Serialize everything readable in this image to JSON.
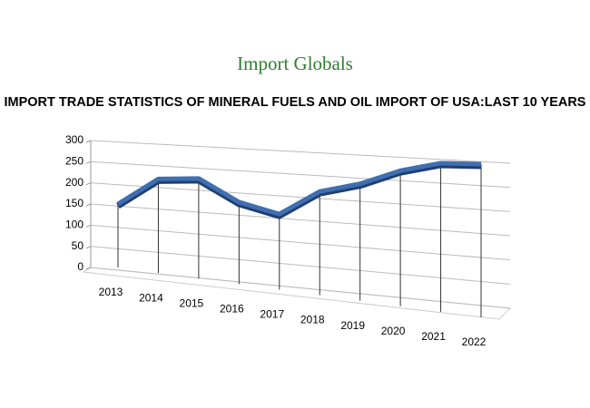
{
  "logo": "Import Globals",
  "chart_data": {
    "type": "line",
    "title": "IMPORT TRADE STATISTICS OF MINERAL FUELS AND OIL IMPORT OF USA:LAST 10 YEARS",
    "categories": [
      "2013",
      "2014",
      "2015",
      "2016",
      "2017",
      "2018",
      "2019",
      "2020",
      "2021",
      "2022"
    ],
    "values": [
      150,
      210,
      212,
      165,
      145,
      190,
      205,
      228,
      240,
      238
    ],
    "color": "#3f6fb0",
    "ylim": [
      0,
      300
    ],
    "yticks": [
      0,
      50,
      100,
      150,
      200,
      250,
      300
    ],
    "grid": true
  }
}
